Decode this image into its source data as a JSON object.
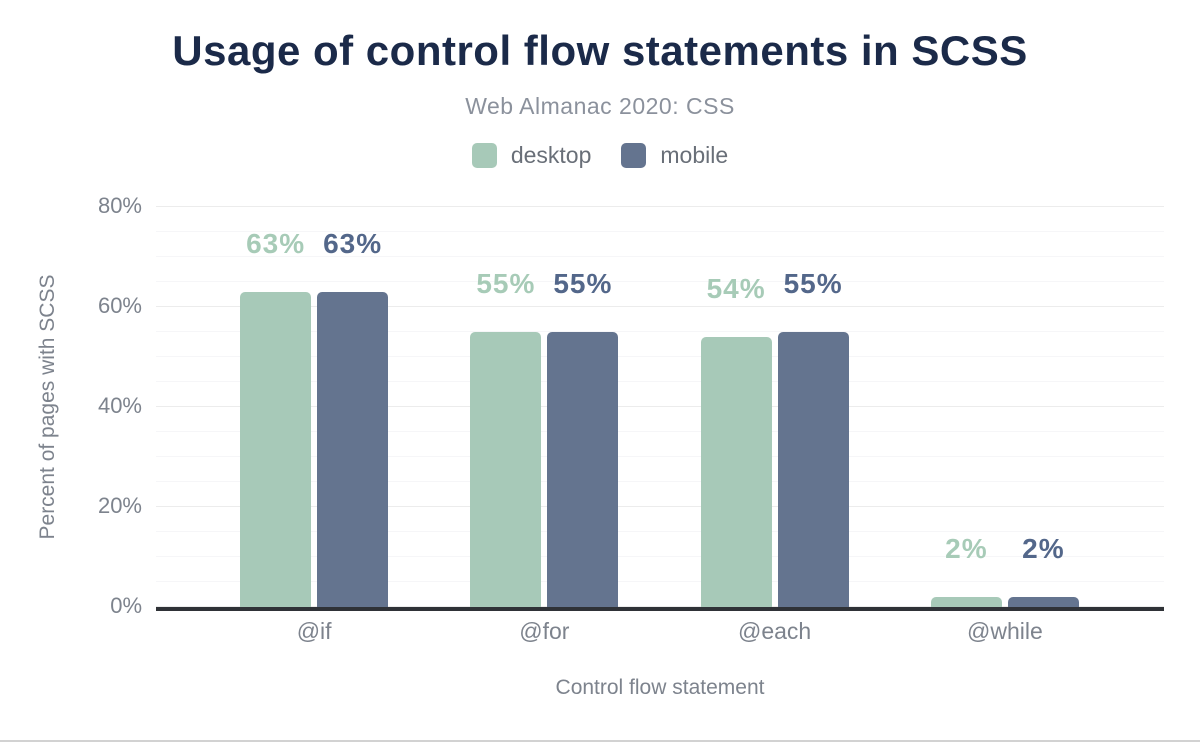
{
  "chart_data": {
    "type": "bar",
    "title": "Usage of control flow statements in SCSS",
    "subtitle": "Web Almanac 2020: CSS",
    "xlabel": "Control flow statement",
    "ylabel": "Percent of pages with SCSS",
    "categories": [
      "@if",
      "@for",
      "@each",
      "@while"
    ],
    "series": [
      {
        "name": "desktop",
        "color": "#a7c9b8",
        "label_color": "#a7cbb7",
        "values": [
          63,
          55,
          54,
          2
        ],
        "labels": [
          "63%",
          "55%",
          "54%",
          "2%"
        ]
      },
      {
        "name": "mobile",
        "color": "#64748f",
        "label_color": "#53678a",
        "values": [
          63,
          55,
          55,
          2
        ],
        "labels": [
          "63%",
          "55%",
          "55%",
          "2%"
        ]
      }
    ],
    "ylim": [
      0,
      80
    ],
    "yticks": [
      {
        "value": 0,
        "label": "0%"
      },
      {
        "value": 20,
        "label": "20%"
      },
      {
        "value": 40,
        "label": "40%"
      },
      {
        "value": 60,
        "label": "60%"
      },
      {
        "value": 80,
        "label": "80%"
      }
    ],
    "grid": {
      "orientation": "horizontal",
      "major_step_pct": 20,
      "minor_step_pct": 5,
      "major_color": "#ececec",
      "minor_color": "#f6f6f8"
    },
    "legend_position": "top",
    "colors": {
      "title": "#1b2a49",
      "subtitle": "#8b919c",
      "axis_text": "#7d838d",
      "legend_text": "#696f78",
      "axis_line": "#2f3237"
    }
  }
}
